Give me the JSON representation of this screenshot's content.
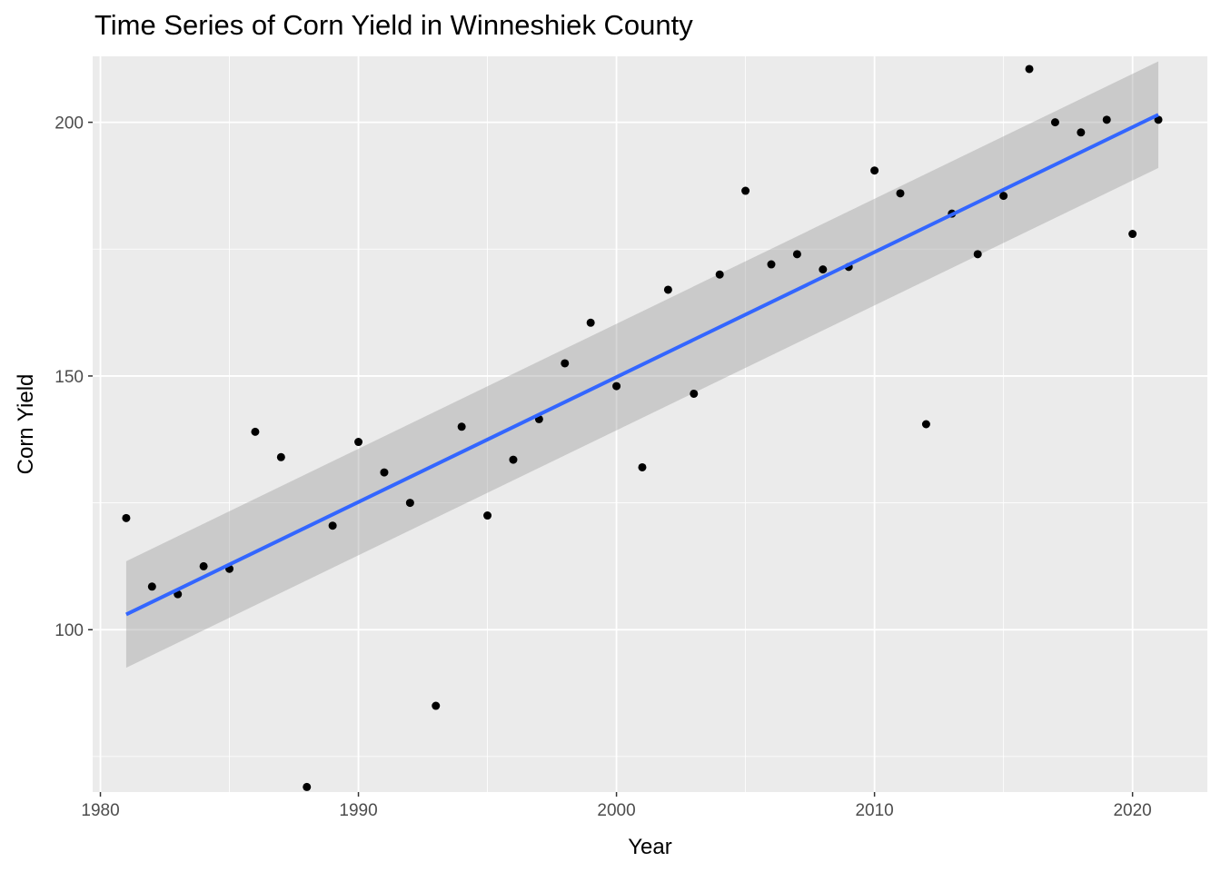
{
  "chart_data": {
    "type": "scatter",
    "title": "Time Series of Corn Yield in Winneshiek County",
    "xlabel": "Year",
    "ylabel": "Corn Yield",
    "xlim": [
      1979.7,
      2022.9
    ],
    "ylim": [
      68,
      213
    ],
    "x_ticks": [
      1980,
      1990,
      2000,
      2010,
      2020
    ],
    "y_ticks": [
      100,
      150,
      200
    ],
    "grid": true,
    "background": "#EBEBEB",
    "grid_major_color": "#FFFFFF",
    "point_color": "#000000",
    "trend_color": "#3366FF",
    "band_color": "#999999",
    "x": [
      1981,
      1982,
      1983,
      1984,
      1985,
      1986,
      1987,
      1988,
      1989,
      1990,
      1991,
      1992,
      1993,
      1994,
      1995,
      1996,
      1997,
      1998,
      1999,
      2000,
      2001,
      2002,
      2003,
      2004,
      2005,
      2006,
      2007,
      2008,
      2009,
      2010,
      2011,
      2012,
      2013,
      2014,
      2015,
      2016,
      2017,
      2018,
      2019,
      2020,
      2021
    ],
    "y": [
      122,
      108.5,
      107,
      112.5,
      112,
      139,
      134,
      69,
      120.5,
      137,
      131,
      125,
      85,
      140,
      122.5,
      133.5,
      141.5,
      152.5,
      160.5,
      148,
      132,
      167,
      146.5,
      170,
      186.5,
      172,
      174,
      171,
      171.5,
      190.5,
      186,
      140.5,
      182,
      174,
      185.5,
      210.5,
      200,
      198,
      200.5,
      178,
      200.5
    ],
    "trend": {
      "method": "lm",
      "x": [
        1981,
        2021
      ],
      "y": [
        103,
        201.5
      ],
      "ci_lower": [
        92.5,
        191
      ],
      "ci_upper": [
        113.5,
        212
      ]
    }
  }
}
